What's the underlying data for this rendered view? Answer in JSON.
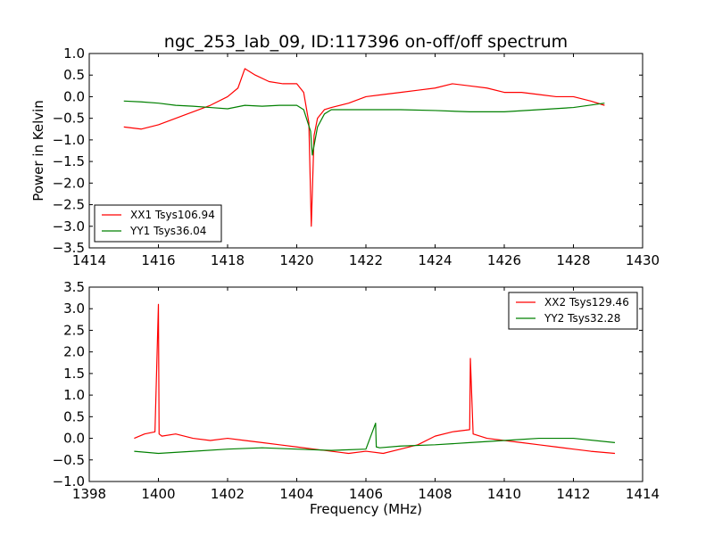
{
  "chart_data": [
    {
      "type": "line",
      "title": "ngc_253_lab_09, ID:117396 on-off/off spectrum",
      "xlabel": "",
      "ylabel": "Power in Kelvin",
      "xlim": [
        1414,
        1430
      ],
      "ylim": [
        -3.5,
        1.0
      ],
      "xticks": [
        1414,
        1416,
        1418,
        1420,
        1422,
        1424,
        1426,
        1428,
        1430
      ],
      "yticks": [
        -3.5,
        -3.0,
        -2.5,
        -2.0,
        -1.5,
        -1.0,
        -0.5,
        0.0,
        0.5,
        1.0
      ],
      "xtick_labels": [
        "1414",
        "1416",
        "1418",
        "1420",
        "1422",
        "1424",
        "1426",
        "1428",
        "1430"
      ],
      "ytick_labels": [
        "−3.5",
        "−3.0",
        "−2.5",
        "−2.0",
        "−1.5",
        "−1.0",
        "−0.5",
        "0.0",
        "0.5",
        "1.0"
      ],
      "grid": false,
      "legend": "lower-left",
      "series": [
        {
          "name": "XX1 Tsys106.94",
          "color": "#ff0000",
          "x": [
            1415.0,
            1415.5,
            1416.0,
            1416.5,
            1417.0,
            1417.5,
            1418.0,
            1418.3,
            1418.5,
            1418.8,
            1419.2,
            1419.6,
            1420.0,
            1420.2,
            1420.35,
            1420.42,
            1420.5,
            1420.6,
            1420.8,
            1421.0,
            1421.5,
            1422.0,
            1422.5,
            1423.0,
            1423.5,
            1424.0,
            1424.5,
            1425.0,
            1425.5,
            1426.0,
            1426.5,
            1427.0,
            1427.5,
            1428.0,
            1428.5,
            1428.9
          ],
          "y": [
            -0.7,
            -0.75,
            -0.65,
            -0.5,
            -0.35,
            -0.2,
            0.0,
            0.2,
            0.65,
            0.5,
            0.35,
            0.3,
            0.3,
            0.1,
            -0.6,
            -3.0,
            -0.9,
            -0.5,
            -0.3,
            -0.25,
            -0.15,
            0.0,
            0.05,
            0.1,
            0.15,
            0.2,
            0.3,
            0.25,
            0.2,
            0.1,
            0.1,
            0.05,
            0.0,
            0.0,
            -0.1,
            -0.2
          ]
        },
        {
          "name": "YY1 Tsys36.04",
          "color": "#008000",
          "x": [
            1415.0,
            1415.5,
            1416.0,
            1416.5,
            1417.0,
            1417.5,
            1418.0,
            1418.5,
            1419.0,
            1419.5,
            1420.0,
            1420.2,
            1420.4,
            1420.45,
            1420.6,
            1420.8,
            1421.0,
            1422.0,
            1423.0,
            1424.0,
            1425.0,
            1426.0,
            1427.0,
            1428.0,
            1428.9
          ],
          "y": [
            -0.1,
            -0.12,
            -0.15,
            -0.2,
            -0.22,
            -0.25,
            -0.28,
            -0.2,
            -0.22,
            -0.2,
            -0.2,
            -0.3,
            -0.8,
            -1.35,
            -0.7,
            -0.4,
            -0.3,
            -0.3,
            -0.3,
            -0.32,
            -0.35,
            -0.35,
            -0.3,
            -0.25,
            -0.15
          ]
        }
      ]
    },
    {
      "type": "line",
      "title": "",
      "xlabel": "Frequency (MHz)",
      "ylabel": "",
      "xlim": [
        1398,
        1414
      ],
      "ylim": [
        -1.0,
        3.5
      ],
      "xticks": [
        1398,
        1400,
        1402,
        1404,
        1406,
        1408,
        1410,
        1412,
        1414
      ],
      "yticks": [
        -1.0,
        -0.5,
        0.0,
        0.5,
        1.0,
        1.5,
        2.0,
        2.5,
        3.0,
        3.5
      ],
      "xtick_labels": [
        "1398",
        "1400",
        "1402",
        "1404",
        "1406",
        "1408",
        "1410",
        "1412",
        "1414"
      ],
      "ytick_labels": [
        "−1.0",
        "−0.5",
        "0.0",
        "0.5",
        "1.0",
        "1.5",
        "2.0",
        "2.5",
        "3.0",
        "3.5"
      ],
      "grid": false,
      "legend": "upper-right",
      "series": [
        {
          "name": "XX2 Tsys129.46",
          "color": "#ff0000",
          "x": [
            1399.3,
            1399.6,
            1399.9,
            1400.0,
            1400.02,
            1400.1,
            1400.5,
            1401.0,
            1401.5,
            1402.0,
            1402.5,
            1403.0,
            1403.5,
            1404.0,
            1404.5,
            1405.0,
            1405.5,
            1406.0,
            1406.5,
            1407.0,
            1407.5,
            1408.0,
            1408.5,
            1409.0,
            1409.02,
            1409.1,
            1409.5,
            1410.0,
            1410.5,
            1411.0,
            1411.5,
            1412.0,
            1412.5,
            1413.2
          ],
          "y": [
            0.0,
            0.1,
            0.15,
            3.1,
            0.1,
            0.05,
            0.1,
            0.0,
            -0.05,
            0.0,
            -0.05,
            -0.1,
            -0.15,
            -0.2,
            -0.25,
            -0.3,
            -0.35,
            -0.3,
            -0.35,
            -0.25,
            -0.15,
            0.05,
            0.15,
            0.2,
            1.85,
            0.1,
            0.0,
            -0.05,
            -0.1,
            -0.15,
            -0.2,
            -0.25,
            -0.3,
            -0.35
          ]
        },
        {
          "name": "YY2 Tsys32.28",
          "color": "#008000",
          "x": [
            1399.3,
            1400.0,
            1401.0,
            1402.0,
            1403.0,
            1404.0,
            1405.0,
            1406.0,
            1406.28,
            1406.3,
            1406.4,
            1407.0,
            1408.0,
            1409.0,
            1410.0,
            1411.0,
            1412.0,
            1413.2
          ],
          "y": [
            -0.3,
            -0.35,
            -0.3,
            -0.25,
            -0.22,
            -0.25,
            -0.28,
            -0.25,
            0.35,
            -0.2,
            -0.22,
            -0.18,
            -0.15,
            -0.1,
            -0.05,
            0.0,
            0.0,
            -0.1
          ]
        }
      ]
    }
  ]
}
